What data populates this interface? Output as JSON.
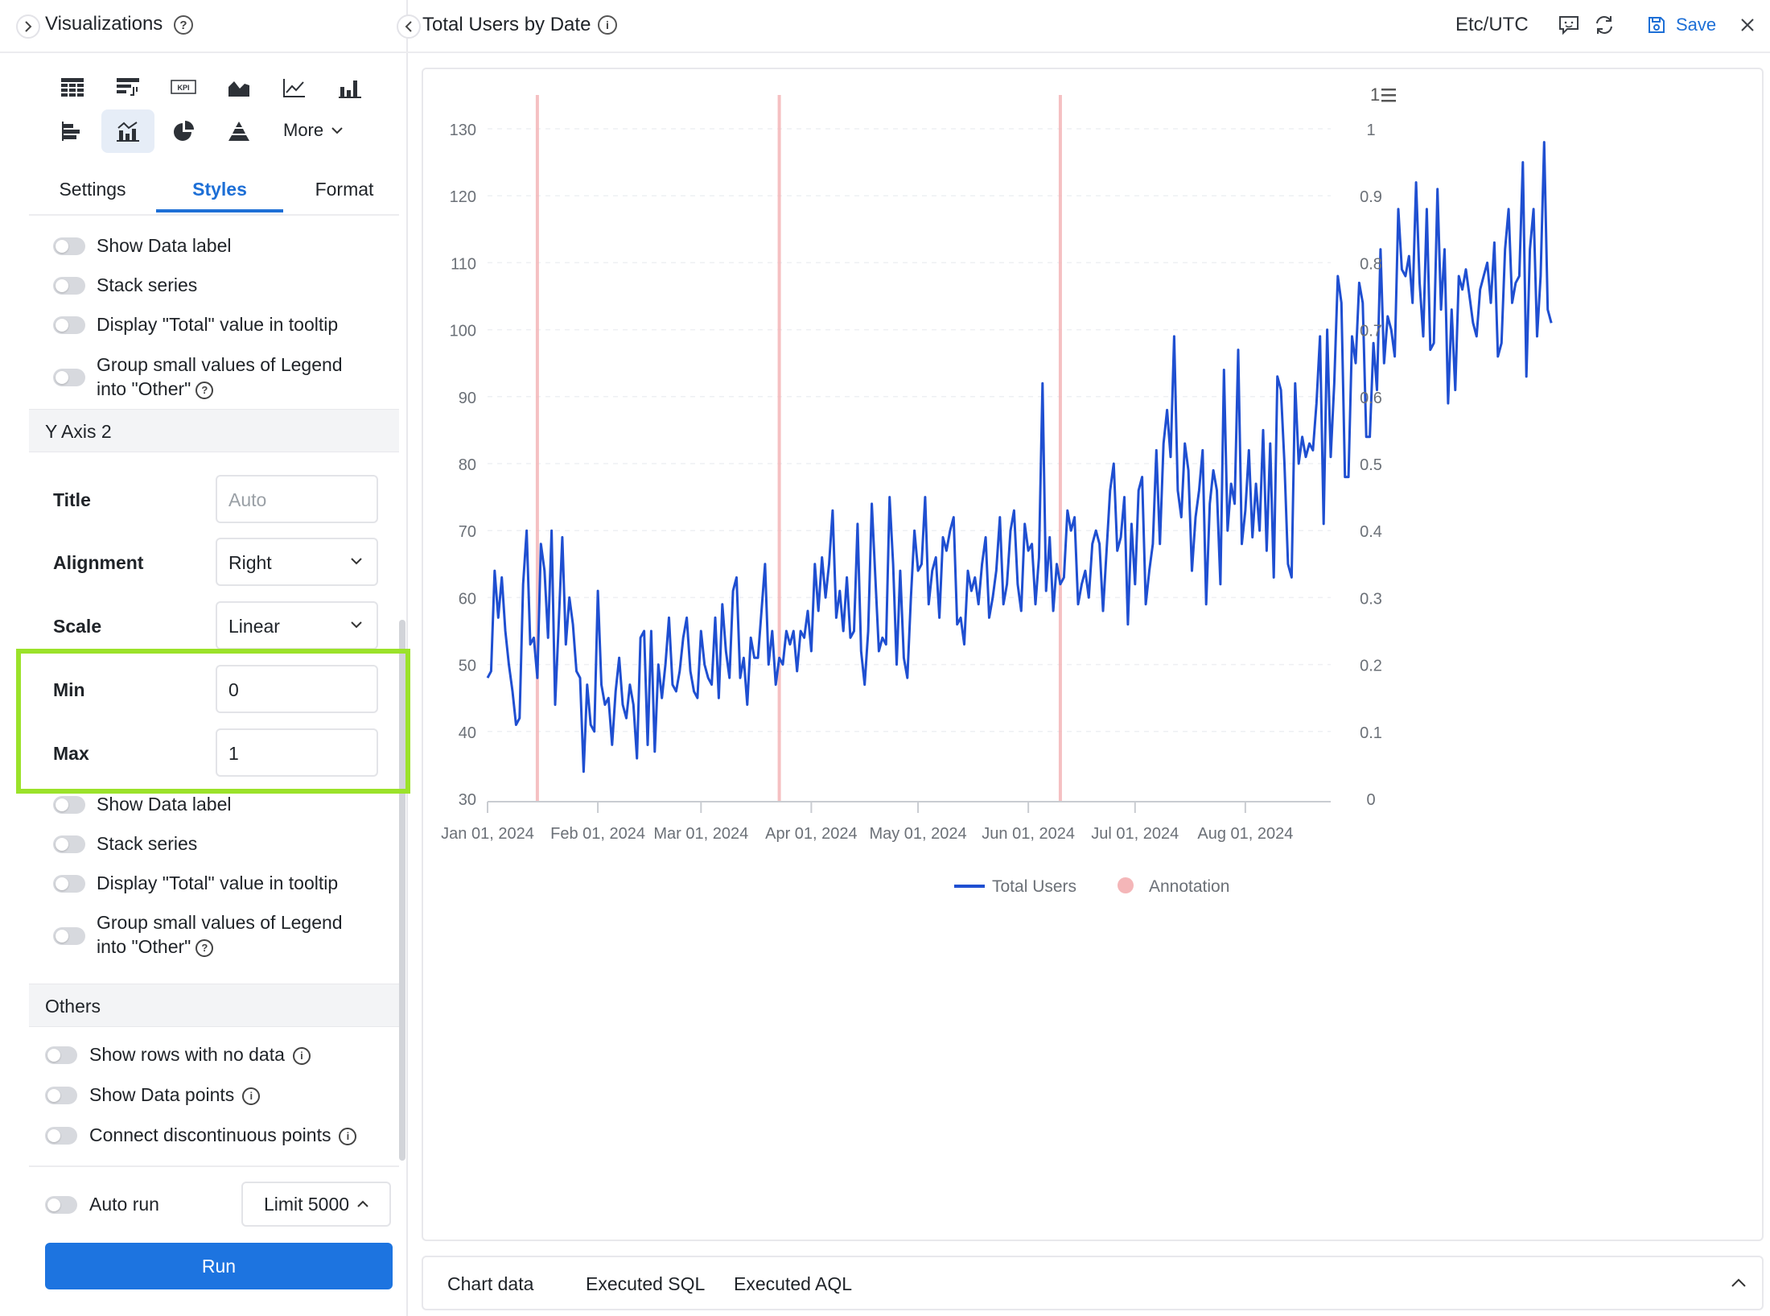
{
  "left_panel": {
    "title": "Visualizations",
    "more_label": "More",
    "tabs": [
      "Settings",
      "Styles",
      "Format"
    ],
    "y_axis_1_options": {
      "show_data_label": "Show Data label",
      "stack_series": "Stack series",
      "display_total": "Display \"Total\" value in tooltip",
      "group_small_line1": "Group small values of Legend",
      "group_small_line2": "into \"Other\""
    },
    "y_axis_2": {
      "header": "Y Axis 2",
      "title_label": "Title",
      "title_placeholder": "Auto",
      "alignment_label": "Alignment",
      "alignment_value": "Right",
      "scale_label": "Scale",
      "scale_value": "Linear",
      "min_label": "Min",
      "min_value": "0",
      "max_label": "Max",
      "max_value": "1",
      "show_data_label": "Show Data label",
      "stack_series": "Stack series",
      "display_total": "Display \"Total\" value in tooltip",
      "group_small_line1": "Group small values of Legend",
      "group_small_line2": "into \"Other\""
    },
    "others": {
      "header": "Others",
      "show_rows": "Show rows with no data",
      "show_points": "Show Data points",
      "connect_points": "Connect discontinuous points"
    },
    "footer": {
      "auto_run": "Auto run",
      "limit": "Limit 5000",
      "run": "Run"
    }
  },
  "top_bar": {
    "title": "Total Users by Date",
    "timezone": "Etc/UTC",
    "save": "Save"
  },
  "colors": {
    "accent": "#1d6fd6",
    "series": "#1f4fd1",
    "annotation": "#f4b6b8",
    "highlight": "#9be22a"
  },
  "bottom_tabs": [
    "Chart data",
    "Executed SQL",
    "Executed AQL"
  ],
  "chart_data": {
    "type": "line",
    "legend_count_label": "1",
    "x_ticks": [
      "Jan 01, 2024",
      "Feb 01, 2024",
      "Mar 01, 2024",
      "Apr 01, 2024",
      "May 01, 2024",
      "Jun 01, 2024",
      "Jul 01, 2024",
      "Aug 01, 2024"
    ],
    "x_start": "2024-01-01",
    "x_end": "2024-08-25",
    "y_left": {
      "min": 30,
      "max": 130,
      "ticks": [
        30,
        40,
        50,
        60,
        70,
        80,
        90,
        100,
        110,
        120,
        130
      ]
    },
    "y_right": {
      "min": 0,
      "max": 1,
      "ticks": [
        "0",
        "0.1",
        "0.2",
        "0.3",
        "0.4",
        "0.5",
        "0.6",
        "0.7",
        "0.8",
        "0.9",
        "1"
      ]
    },
    "grid": true,
    "legend_position": "bottom",
    "annotations": [
      {
        "name": "Annotation",
        "date": "2024-01-15"
      },
      {
        "name": "Annotation",
        "date": "2024-03-23"
      },
      {
        "name": "Annotation",
        "date": "2024-06-10"
      }
    ],
    "series": [
      {
        "name": "Total Users",
        "start_date": "2024-01-01",
        "values": [
          48,
          49,
          64,
          57,
          63,
          55,
          50,
          46,
          41,
          42,
          62,
          70,
          53,
          54,
          48,
          68,
          64,
          54,
          70,
          44,
          56,
          69,
          53,
          60,
          56,
          49,
          48,
          34,
          47,
          41,
          40,
          61,
          47,
          44,
          45,
          38,
          46,
          51,
          44,
          42,
          47,
          44,
          36,
          54,
          55,
          38,
          55,
          37,
          50,
          45,
          50,
          57,
          47,
          46,
          49,
          54,
          57,
          49,
          46,
          45,
          55,
          50,
          48,
          47,
          57,
          45,
          59,
          52,
          48,
          61,
          63,
          48,
          51,
          44,
          54,
          51,
          51,
          58,
          65,
          50,
          55,
          47,
          51,
          50,
          55,
          53,
          55,
          49,
          55,
          54,
          58,
          52,
          65,
          58,
          66,
          60,
          65,
          73,
          57,
          61,
          55,
          63,
          54,
          55,
          71,
          52,
          47,
          55,
          74,
          63,
          52,
          54,
          53,
          75,
          65,
          50,
          64,
          51,
          48,
          60,
          70,
          64,
          65,
          75,
          59,
          64,
          66,
          57,
          69,
          67,
          70,
          72,
          56,
          57,
          53,
          64,
          61,
          63,
          59,
          65,
          69,
          57,
          60,
          64,
          72,
          59,
          62,
          70,
          73,
          62,
          58,
          71,
          67,
          68,
          59,
          66,
          92,
          61,
          69,
          58,
          65,
          62,
          63,
          73,
          70,
          72,
          59,
          62,
          64,
          60,
          68,
          70,
          68,
          58,
          67,
          76,
          80,
          67,
          69,
          75,
          56,
          71,
          62,
          76,
          78,
          59,
          64,
          68,
          82,
          68,
          83,
          88,
          81,
          99,
          76,
          72,
          83,
          79,
          64,
          72,
          76,
          82,
          59,
          74,
          79,
          76,
          62,
          94,
          70,
          77,
          74,
          97,
          68,
          73,
          82,
          69,
          77,
          70,
          85,
          67,
          83,
          63,
          93,
          91,
          80,
          65,
          63,
          92,
          80,
          84,
          81,
          83,
          82,
          89,
          99,
          71,
          100,
          81,
          92,
          108,
          104,
          78,
          78,
          99,
          95,
          107,
          104,
          84,
          84,
          98,
          91,
          112,
          95,
          102,
          100,
          96,
          118,
          109,
          108,
          111,
          104,
          122,
          107,
          99,
          118,
          97,
          98,
          121,
          103,
          112,
          89,
          103,
          91,
          108,
          106,
          109,
          105,
          101,
          99,
          106,
          108,
          110,
          104,
          113,
          96,
          98,
          112,
          118,
          104,
          107,
          108,
          125,
          93,
          112,
          118,
          99,
          108,
          128,
          103,
          101
        ]
      }
    ]
  }
}
